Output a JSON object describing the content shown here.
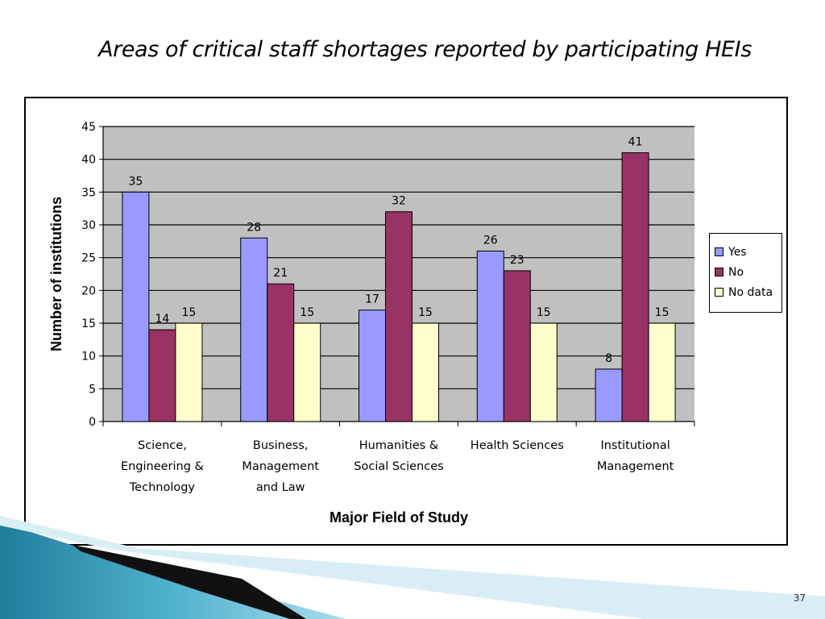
{
  "slide": {
    "title": "Areas of critical staff shortages reported by participating HEIs",
    "page_number": "37"
  },
  "colors": {
    "plot_background": "#c0c0c0",
    "yes": "#9999ff",
    "no": "#993366",
    "no_data": "#ffffcc",
    "deco_blue": "#2b8fae",
    "deco_light": "#bfe3ee"
  },
  "chart_data": {
    "type": "bar",
    "title": "",
    "xlabel": "Major Field of Study",
    "ylabel": "Number of institutions",
    "ylim": [
      0,
      45
    ],
    "yticks": [
      0,
      5,
      10,
      15,
      20,
      25,
      30,
      35,
      40,
      45
    ],
    "grid": true,
    "legend_position": "right",
    "categories": [
      [
        "Science,",
        "Engineering &",
        "Technology"
      ],
      [
        "Business,",
        "Management",
        "and Law"
      ],
      [
        "Humanities &",
        "Social Sciences"
      ],
      [
        "Health Sciences"
      ],
      [
        "Institutional",
        "Management"
      ]
    ],
    "series": [
      {
        "name": "Yes",
        "color": "#9999ff",
        "values": [
          35,
          28,
          17,
          26,
          8
        ]
      },
      {
        "name": "No",
        "color": "#993366",
        "values": [
          14,
          21,
          32,
          23,
          41
        ]
      },
      {
        "name": "No data",
        "color": "#ffffcc",
        "values": [
          15,
          15,
          15,
          15,
          15
        ]
      }
    ]
  }
}
